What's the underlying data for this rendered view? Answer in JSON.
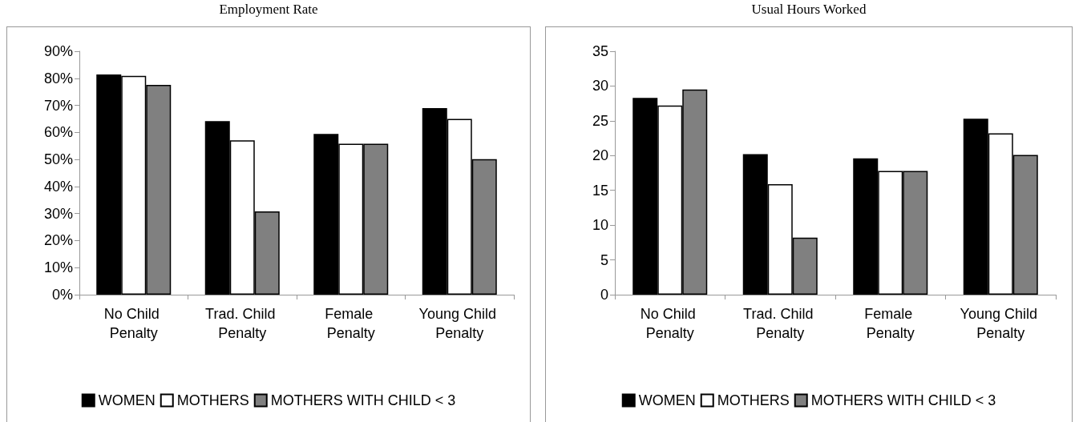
{
  "chart_data": [
    {
      "type": "bar",
      "title": "Employment Rate",
      "categories": [
        "No Child Penalty",
        "Trad. Child Penalty",
        "Female Penalty",
        "Young Child Penalty"
      ],
      "series": [
        {
          "name": "WOMEN",
          "color": "#000000",
          "values": [
            81.4,
            64.2,
            59.4,
            69.0
          ]
        },
        {
          "name": "MOTHERS",
          "color": "#ffffff",
          "values": [
            80.9,
            57.1,
            55.8,
            65.0
          ]
        },
        {
          "name": "MOTHERS WITH CHILD < 3",
          "color": "#808080",
          "values": [
            77.6,
            30.8,
            55.8,
            50.1
          ]
        }
      ],
      "ylim": [
        0,
        90
      ],
      "yticks": [
        {
          "value": 0,
          "label": "0%"
        },
        {
          "value": 10,
          "label": "10%"
        },
        {
          "value": 20,
          "label": "20%"
        },
        {
          "value": 30,
          "label": "30%"
        },
        {
          "value": 40,
          "label": "40%"
        },
        {
          "value": 50,
          "label": "50%"
        },
        {
          "value": 60,
          "label": "60%"
        },
        {
          "value": 70,
          "label": "70%"
        },
        {
          "value": 80,
          "label": "80%"
        },
        {
          "value": 90,
          "label": "90%"
        }
      ],
      "grid": false,
      "legend": "bottom"
    },
    {
      "type": "bar",
      "title": "Usual Hours Worked",
      "categories": [
        "No Child Penalty",
        "Trad. Child Penalty",
        "Female Penalty",
        "Young Child Penalty"
      ],
      "series": [
        {
          "name": "WOMEN",
          "color": "#000000",
          "values": [
            28.3,
            20.2,
            19.6,
            25.3
          ]
        },
        {
          "name": "MOTHERS",
          "color": "#ffffff",
          "values": [
            27.2,
            15.9,
            17.8,
            23.2
          ]
        },
        {
          "name": "MOTHERS WITH CHILD < 3",
          "color": "#808080",
          "values": [
            29.5,
            8.2,
            17.8,
            20.1
          ]
        }
      ],
      "ylim": [
        0,
        35
      ],
      "yticks": [
        0,
        5,
        10,
        15,
        20,
        25,
        30,
        35
      ],
      "grid": false,
      "legend": "bottom"
    }
  ]
}
